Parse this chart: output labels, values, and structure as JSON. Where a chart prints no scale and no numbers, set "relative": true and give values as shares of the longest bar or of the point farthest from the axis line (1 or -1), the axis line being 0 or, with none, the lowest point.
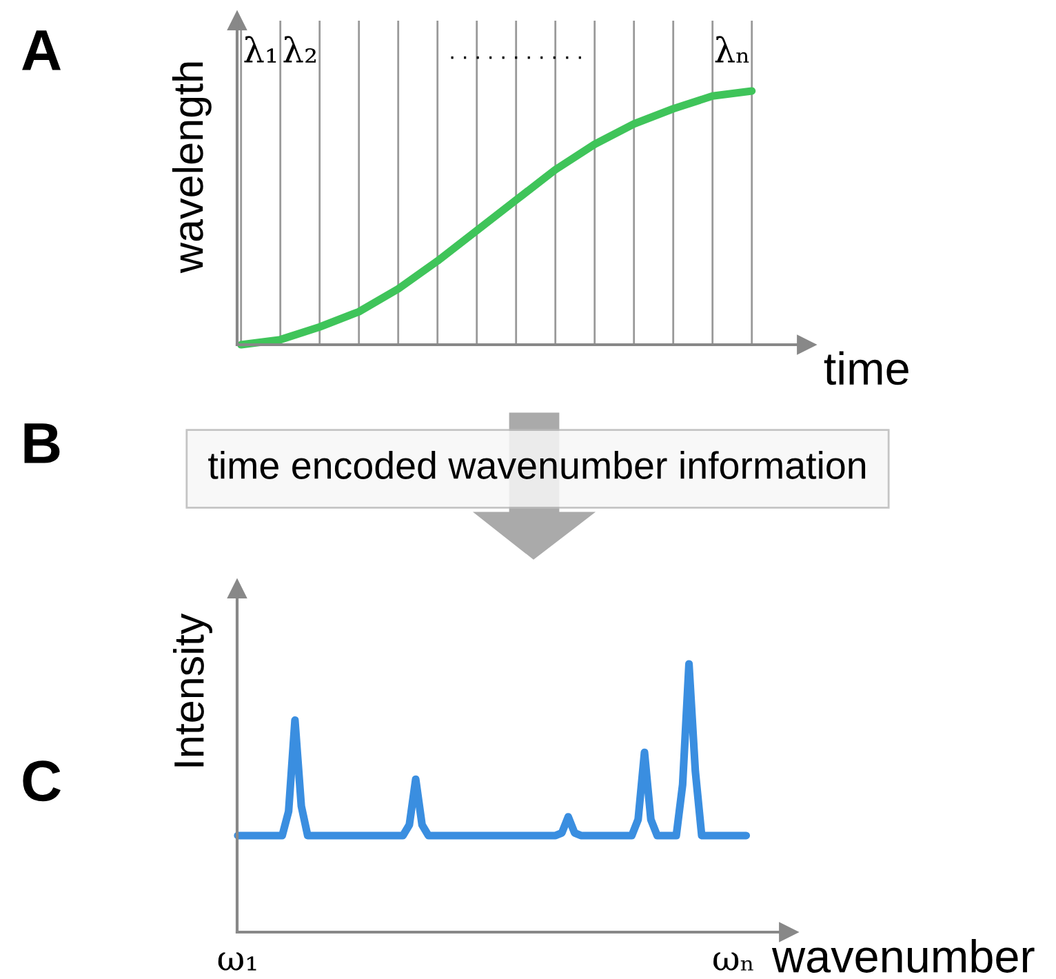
{
  "chart_data": [
    {
      "type": "line",
      "relative": true,
      "xlabel": "time",
      "ylabel": "wavelength",
      "grid": "x",
      "marker": "none",
      "line_style": "solid",
      "categories": [
        null,
        null,
        null,
        null,
        null,
        null,
        null,
        null,
        null,
        null,
        null,
        null,
        null,
        null
      ],
      "series": [
        {
          "color": "#3fc45a",
          "values": [
            0,
            0.02,
            0.07,
            0.13,
            0.22,
            0.33,
            0.45,
            0.57,
            0.69,
            0.79,
            0.87,
            0.93,
            0.98,
            1
          ]
        }
      ],
      "annotations": [
        "A",
        "λ₁",
        "λ₂",
        ". . . . . . . . . . .",
        "λₙ"
      ]
    },
    {
      "type": "line",
      "relative": true,
      "xlabel": "wavenumber",
      "ylabel": "Intensity",
      "grid": false,
      "marker": "none",
      "line_style": "solid",
      "categories": [
        null,
        null,
        null,
        null,
        null,
        null,
        null,
        null,
        null,
        null,
        null,
        null,
        null,
        null,
        null,
        null,
        null,
        null,
        null,
        null,
        null,
        null,
        null,
        null,
        null,
        null,
        null,
        null,
        null,
        null,
        null,
        null,
        null,
        null,
        null,
        null,
        null,
        null,
        null,
        null,
        null,
        null,
        null,
        null,
        null,
        null,
        null,
        null,
        null,
        null,
        null,
        null,
        null,
        null,
        null,
        null,
        null,
        null,
        null,
        null,
        null,
        null,
        null,
        null,
        null,
        null,
        null,
        null,
        null,
        null,
        null,
        null,
        null,
        null,
        null,
        null,
        null,
        null,
        null,
        null,
        null
      ],
      "series": [
        {
          "color": "#3a8ee0",
          "values": [
            0.36,
            0.36,
            0.36,
            0.36,
            0.36,
            0.36,
            0.36,
            0.36,
            0.45,
            0.79,
            0.47,
            0.36,
            0.36,
            0.36,
            0.36,
            0.36,
            0.36,
            0.36,
            0.36,
            0.36,
            0.36,
            0.36,
            0.36,
            0.36,
            0.36,
            0.36,
            0.36,
            0.4,
            0.57,
            0.4,
            0.36,
            0.36,
            0.36,
            0.36,
            0.36,
            0.36,
            0.36,
            0.36,
            0.36,
            0.36,
            0.36,
            0.36,
            0.36,
            0.36,
            0.36,
            0.36,
            0.36,
            0.36,
            0.36,
            0.36,
            0.36,
            0.37,
            0.43,
            0.37,
            0.36,
            0.36,
            0.36,
            0.36,
            0.36,
            0.36,
            0.36,
            0.36,
            0.36,
            0.42,
            0.67,
            0.42,
            0.36,
            0.36,
            0.36,
            0.36,
            0.55,
            1,
            0.6,
            0.36,
            0.36,
            0.36,
            0.36,
            0.36,
            0.36,
            0.36,
            0.36
          ]
        }
      ],
      "annotations": [
        "B",
        "time encoded wavenumber information",
        "C",
        "ω₁",
        "ωₙ"
      ]
    }
  ]
}
